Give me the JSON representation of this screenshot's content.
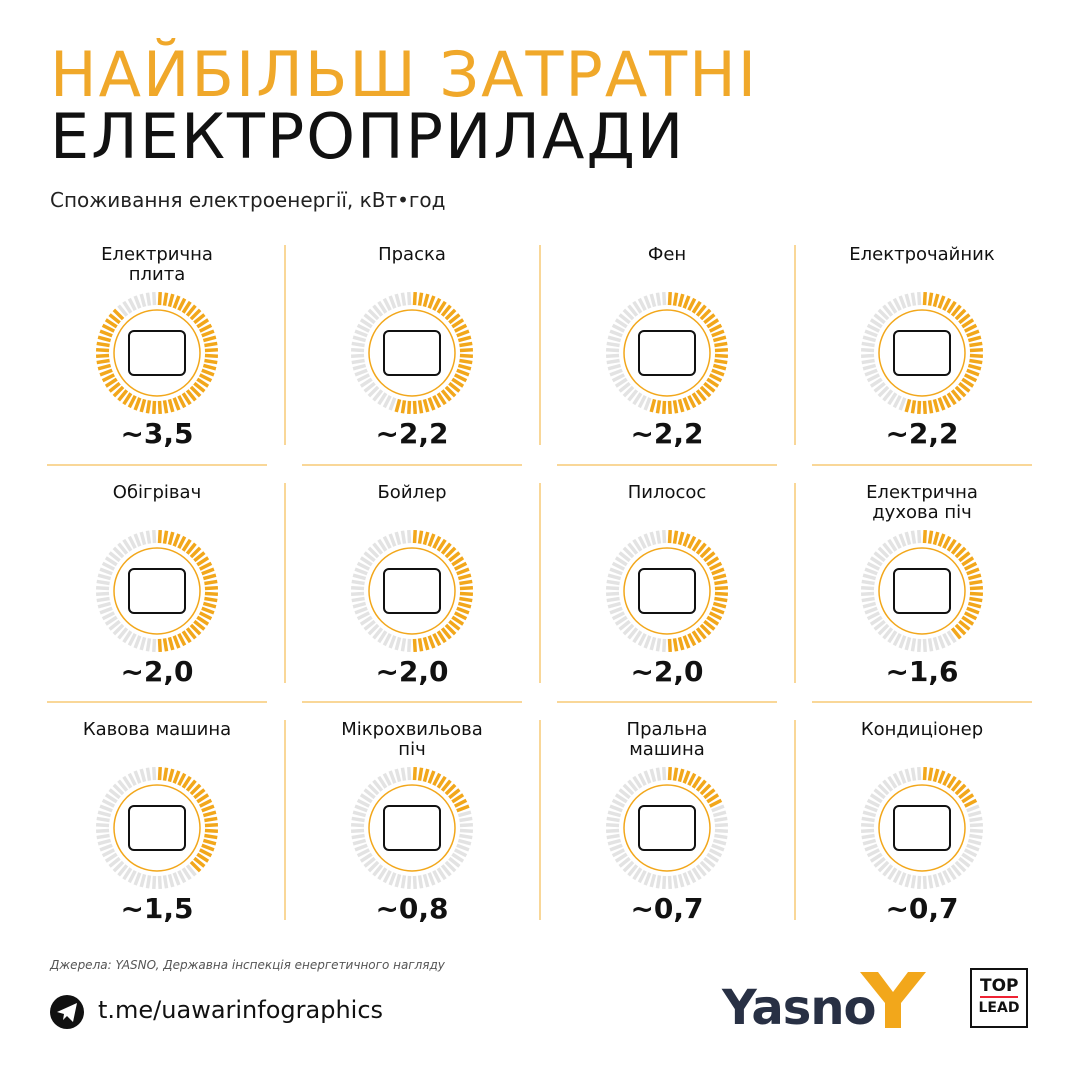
{
  "chart_data": {
    "type": "gauge",
    "title": "НАЙБІЛЬШ ЗАТРАТНІ",
    "title_line2": "ЕЛЕКТРОПРИЛАДИ",
    "subtitle": "Споживання електроенергії, кВт•год",
    "categories": [
      "Електрична плита",
      "Праска",
      "Фен",
      "Електрочайник",
      "Обігрівач",
      "Бойлер",
      "Пилосос",
      "Електрична духова піч",
      "Кавова машина",
      "Мікрохвильова піч",
      "Пральна машина",
      "Кондиціонер"
    ],
    "values": [
      3.5,
      2.2,
      2.2,
      2.2,
      2.0,
      2.0,
      2.0,
      1.6,
      1.5,
      0.8,
      0.7,
      0.7
    ],
    "value_labels": [
      "~3,5",
      "~2,2",
      "~2,2",
      "~2,2",
      "~2,0",
      "~2,0",
      "~2,0",
      "~1,6",
      "~1,5",
      "~0,8",
      "~0,7",
      "~0,7"
    ],
    "ylim": [
      0,
      4
    ],
    "color": "#f2a71b"
  },
  "footer": {
    "source": "Джерела: YASNO, Державна інспекція енергетичного нагляду",
    "link": "t.me/uawarinfographics",
    "brand": "Yasno",
    "partner_top": "TOP",
    "partner_bottom": "LEAD"
  }
}
